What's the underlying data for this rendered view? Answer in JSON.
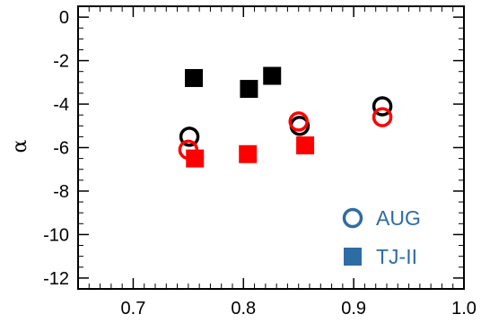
{
  "chart_data": {
    "type": "scatter",
    "title": "",
    "xlabel": "",
    "ylabel": "α",
    "xlim": [
      0.65,
      1.0
    ],
    "ylim": [
      -12.5,
      0.5
    ],
    "grid": false,
    "x_ticks": [
      {
        "value": 0.7,
        "label": "0.7"
      },
      {
        "value": 0.8,
        "label": "0.8"
      },
      {
        "value": 0.9,
        "label": "0.9"
      },
      {
        "value": 1.0,
        "label": "1.0"
      }
    ],
    "y_ticks": [
      {
        "value": 0,
        "label": "0"
      },
      {
        "value": -2,
        "label": "-2"
      },
      {
        "value": -4,
        "label": "-4"
      },
      {
        "value": -6,
        "label": "-6"
      },
      {
        "value": -8,
        "label": "-8"
      },
      {
        "value": -10,
        "label": "-10"
      },
      {
        "value": -12,
        "label": "-12"
      }
    ],
    "legend": {
      "placement": "bottom-right",
      "color": "#2e6ca4",
      "entries": [
        {
          "label": "AUG",
          "marker": "open-circle"
        },
        {
          "label": "TJ-II",
          "marker": "filled-square"
        }
      ]
    },
    "series": [
      {
        "marker": "open-circle",
        "color": "#000000",
        "points": [
          {
            "x": 0.751,
            "y": -5.5
          },
          {
            "x": 0.851,
            "y": -5.0
          },
          {
            "x": 0.926,
            "y": -4.1
          }
        ]
      },
      {
        "marker": "open-circle",
        "color": "#ff0000",
        "points": [
          {
            "x": 0.75,
            "y": -6.1
          },
          {
            "x": 0.85,
            "y": -4.8
          },
          {
            "x": 0.926,
            "y": -4.6
          }
        ]
      },
      {
        "marker": "filled-square",
        "color": "#000000",
        "points": [
          {
            "x": 0.755,
            "y": -2.8
          },
          {
            "x": 0.805,
            "y": -3.3
          },
          {
            "x": 0.826,
            "y": -2.7
          }
        ]
      },
      {
        "marker": "filled-square",
        "color": "#ff0000",
        "points": [
          {
            "x": 0.756,
            "y": -6.5
          },
          {
            "x": 0.804,
            "y": -6.3
          },
          {
            "x": 0.856,
            "y": -5.9
          }
        ]
      }
    ]
  }
}
